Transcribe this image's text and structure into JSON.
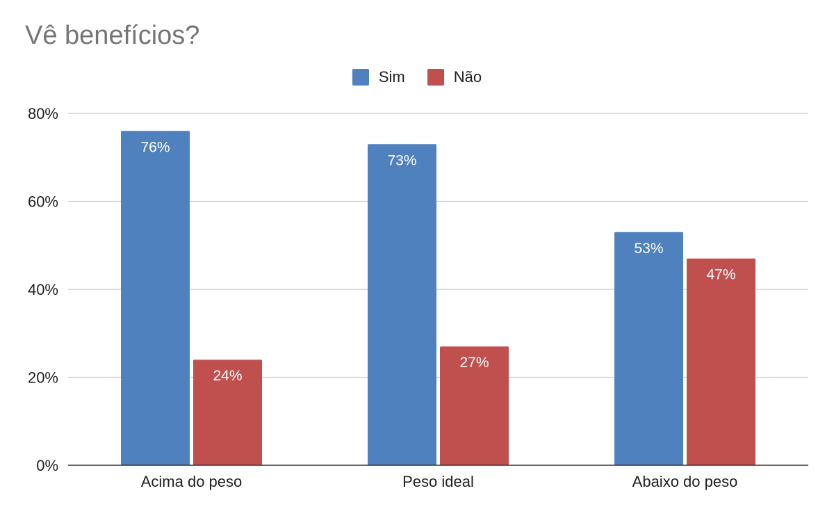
{
  "colors": {
    "sim": "#4e81bd",
    "nao": "#c0504d",
    "grid": "#cccccc",
    "axis": "#333333",
    "title": "#757575"
  },
  "chart_data": {
    "type": "bar",
    "title": "Vê benefícios?",
    "xlabel": "",
    "ylabel": "",
    "categories": [
      "Acima do peso",
      "Peso ideal",
      "Abaixo do peso"
    ],
    "series": [
      {
        "name": "Sim",
        "values": [
          76,
          73,
          53
        ],
        "labels": [
          "76%",
          "73%",
          "53%"
        ]
      },
      {
        "name": "Não",
        "values": [
          24,
          27,
          47
        ],
        "labels": [
          "24%",
          "27%",
          "47%"
        ]
      }
    ],
    "ylim": [
      0,
      80
    ],
    "yticks": [
      {
        "value": 0,
        "label": "0%"
      },
      {
        "value": 20,
        "label": "20%"
      },
      {
        "value": 40,
        "label": "40%"
      },
      {
        "value": 60,
        "label": "60%"
      },
      {
        "value": 80,
        "label": "80%"
      }
    ],
    "grid": true,
    "legend_position": "top"
  }
}
